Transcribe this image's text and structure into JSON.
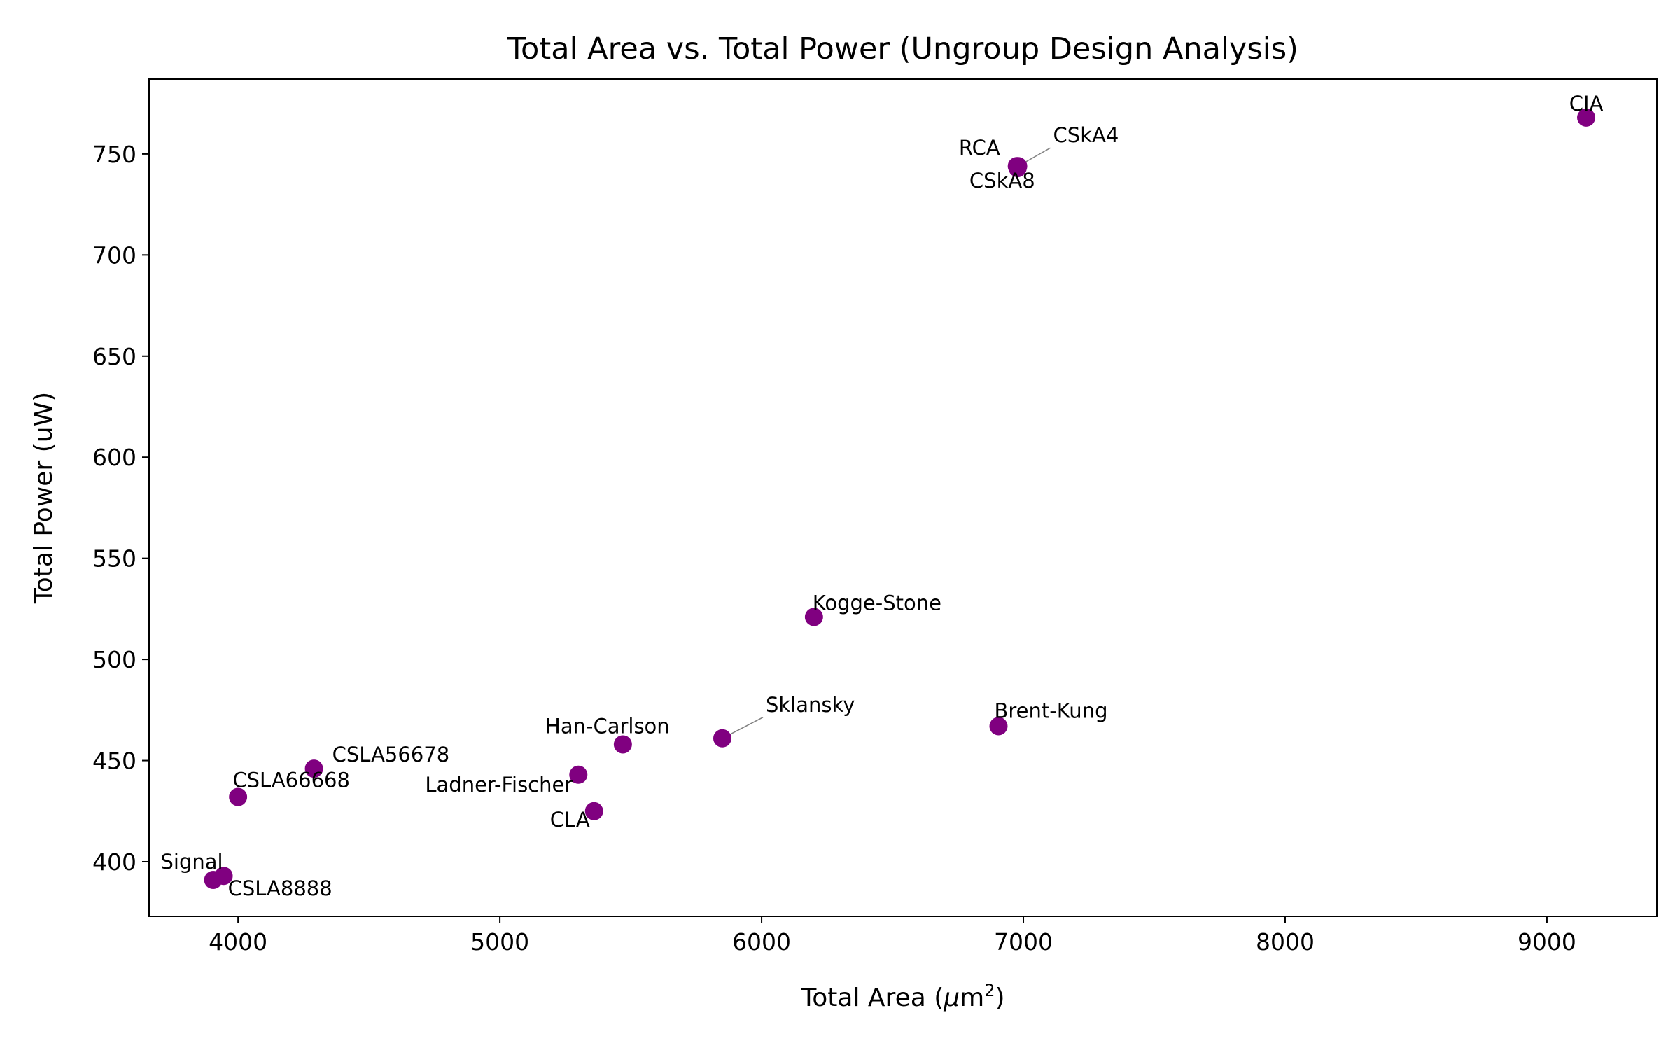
{
  "chart_data": {
    "type": "scatter",
    "title": "Total Area vs. Total Power (Ungroup Design Analysis)",
    "xlabel_main": "Total Area (",
    "xlabel_mu": "μ",
    "xlabel_unit": "m",
    "xlabel_sup": "2",
    "xlabel_close": ")",
    "ylabel": "Total Power (uW)",
    "xlim": [
      3660,
      9420
    ],
    "ylim": [
      373,
      787
    ],
    "xticks": [
      4000,
      5000,
      6000,
      7000,
      8000,
      9000
    ],
    "yticks": [
      400,
      450,
      500,
      550,
      600,
      650,
      700,
      750
    ],
    "grid": false,
    "marker_color": "#800080",
    "points": [
      {
        "label": "CIA",
        "x": 9150,
        "y": 768
      },
      {
        "label": "RCA",
        "x": 6975,
        "y": 744
      },
      {
        "label": "CSkA4",
        "x": 6980,
        "y": 744
      },
      {
        "label": "CSkA8",
        "x": 6978,
        "y": 743
      },
      {
        "label": "Kogge-Stone",
        "x": 6200,
        "y": 521
      },
      {
        "label": "Brent-Kung",
        "x": 6905,
        "y": 467
      },
      {
        "label": "Sklansky",
        "x": 5850,
        "y": 461
      },
      {
        "label": "Han-Carlson",
        "x": 5470,
        "y": 458
      },
      {
        "label": "CSLA56678",
        "x": 4290,
        "y": 446
      },
      {
        "label": "Ladner-Fischer",
        "x": 5300,
        "y": 443
      },
      {
        "label": "CSLA66668",
        "x": 4000,
        "y": 432
      },
      {
        "label": "CLA",
        "x": 5360,
        "y": 425
      },
      {
        "label": "Signal",
        "x": 3905,
        "y": 391
      },
      {
        "label": "CSLA8888",
        "x": 3945,
        "y": 393
      }
    ]
  }
}
